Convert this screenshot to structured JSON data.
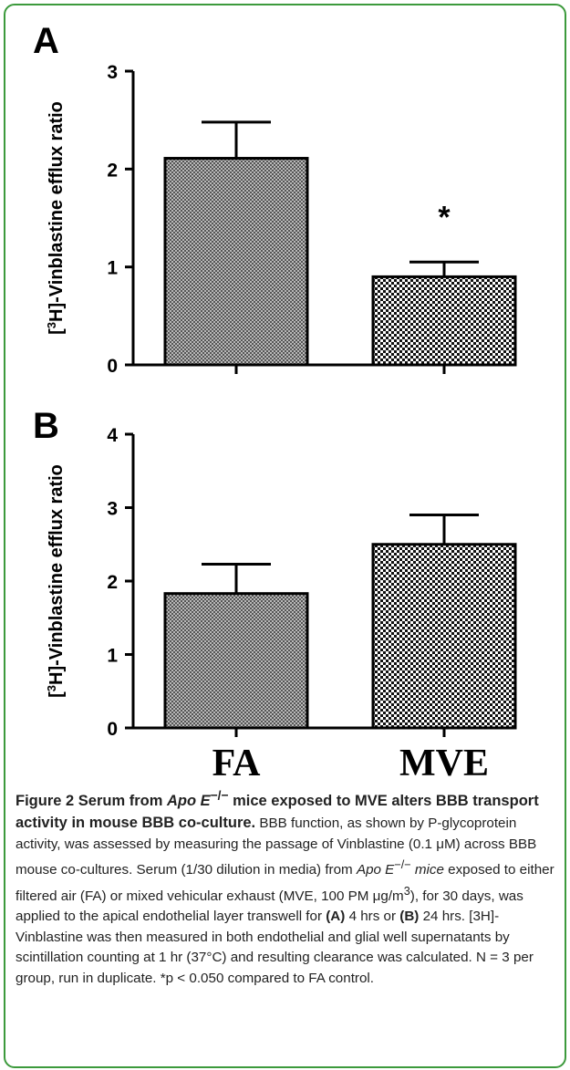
{
  "chart_data": [
    {
      "type": "bar",
      "panel_label": "A",
      "categories": [
        "FA",
        "MVE"
      ],
      "values": [
        2.11,
        0.9
      ],
      "errors": [
        0.37,
        0.15
      ],
      "ylabel": "[3H]-Vinblastine efflux ratio",
      "ylim": [
        0,
        3
      ],
      "yticks": [
        0,
        1,
        2,
        3
      ],
      "annotations": [
        {
          "category": "MVE",
          "text": "*"
        }
      ]
    },
    {
      "type": "bar",
      "panel_label": "B",
      "categories": [
        "FA",
        "MVE"
      ],
      "values": [
        1.83,
        2.5
      ],
      "errors": [
        0.4,
        0.4
      ],
      "ylabel": "[3H]-Vinblastine efflux ratio",
      "ylim": [
        0,
        4
      ],
      "yticks": [
        0,
        1,
        2,
        3,
        4
      ],
      "annotations": []
    }
  ],
  "x_labels": [
    "FA",
    "MVE"
  ],
  "caption": {
    "title_part1": "Figure 2 Serum from ",
    "title_italic": "Apo E",
    "title_sup": "−/−",
    "title_part2": " mice exposed to MVE alters BBB transport activity in mouse BBB co-culture.",
    "text_1": " BBB function, as shown by P-glycoprotein activity, was assessed by measuring the passage of Vinblastine (0.1 μM) across BBB mouse co-cultures. Serum (1/30 dilution in media) from ",
    "text_italic": "Apo E",
    "text_sup": "−/−",
    "text_italic2": " mice",
    "text_2": " exposed to either filtered air (FA) or mixed vehicular exhaust (MVE, 100 PM μg/m",
    "text_sup2": "3",
    "text_3": "), for 30 days, was applied to the apical endothelial layer transwell for ",
    "bold_a": "(A)",
    "text_4": " 4 hrs or ",
    "bold_b": "(B)",
    "text_5": " 24 hrs. [3H]-Vinblastine was then measured in both endothelial and glial well supernatants by scintillation counting at 1 hr (37°C) and resulting clearance was calculated. N = 3 per group, run in duplicate. *p < 0.050 compared to FA control."
  },
  "colors": {
    "border": "#3c9a3c",
    "bar_dark": "#000000",
    "bar_light": "#ffffff"
  }
}
